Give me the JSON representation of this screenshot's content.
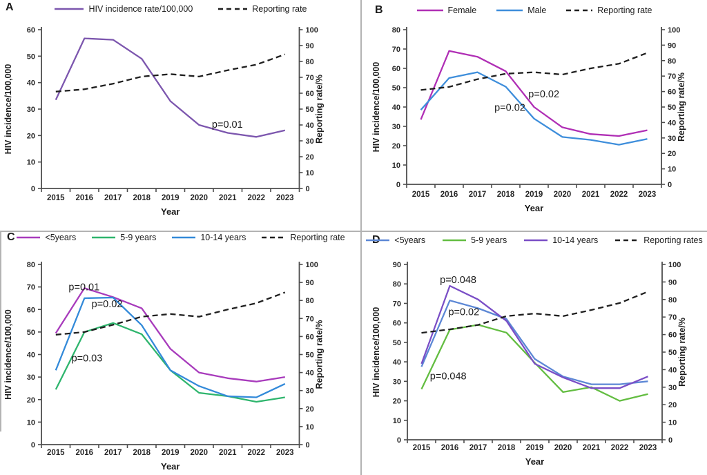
{
  "chart_data": [
    {
      "panel": "A",
      "type": "line",
      "x": [
        2015,
        2016,
        2017,
        2018,
        2019,
        2020,
        2021,
        2022,
        2023
      ],
      "xlabel": "Year",
      "ylabel_left": "HIV incidence/100,000",
      "ylabel_right": "Reporting rate/%",
      "ylim_left": [
        0,
        60
      ],
      "ylim_right": [
        0,
        100
      ],
      "ytick_step": 10,
      "grid": false,
      "legend_position": "top",
      "series": [
        {
          "name": "HIV incidence rate/100,000",
          "axis": "left",
          "color": "#7C56AE",
          "dash": false,
          "values": [
            33.5,
            56.7,
            56.2,
            49,
            33,
            24,
            21,
            19.5,
            22
          ]
        },
        {
          "name": "Reporting rate",
          "axis": "right",
          "color": "#1f1f1f",
          "dash": true,
          "values": [
            61,
            62.5,
            66,
            70.5,
            72,
            70.5,
            74.5,
            78,
            84.5
          ]
        }
      ],
      "annotations": [
        {
          "text": "p=0.01",
          "x": 2020.45,
          "y": 23
        }
      ]
    },
    {
      "panel": "B",
      "type": "line",
      "x": [
        2015,
        2016,
        2017,
        2018,
        2019,
        2020,
        2021,
        2022,
        2023
      ],
      "xlabel": "Year",
      "ylabel_left": "HIV incidence/100,000",
      "ylabel_right": "Reporting rate/%",
      "ylim_left": [
        0,
        80
      ],
      "ylim_right": [
        0,
        100
      ],
      "ytick_step": 10,
      "grid": false,
      "legend_position": "top",
      "series": [
        {
          "name": "Female",
          "axis": "left",
          "color": "#B02FB5",
          "dash": false,
          "values": [
            33.5,
            69,
            66,
            58.5,
            40,
            29.5,
            26,
            25,
            28
          ]
        },
        {
          "name": "Male",
          "axis": "left",
          "color": "#3E8EDB",
          "dash": false,
          "values": [
            38.5,
            55,
            58,
            50.5,
            34,
            24.5,
            23,
            20.5,
            23.5
          ]
        },
        {
          "name": "Reporting rate",
          "axis": "right",
          "color": "#1f1f1f",
          "dash": true,
          "values": [
            61,
            63,
            68,
            71.5,
            72.5,
            71,
            75,
            78,
            85
          ]
        }
      ],
      "annotations": [
        {
          "text": "p=0.02",
          "x": 2018.8,
          "y": 45
        },
        {
          "text": "p=0.02",
          "x": 2017.6,
          "y": 38
        }
      ]
    },
    {
      "panel": "C",
      "type": "line",
      "x": [
        2015,
        2016,
        2017,
        2018,
        2019,
        2020,
        2021,
        2022,
        2023
      ],
      "xlabel": "Year",
      "ylabel_left": "HIV incidence/100,000",
      "ylabel_right": "Reporting rate/%",
      "ylim_left": [
        0,
        80
      ],
      "ylim_right": [
        0,
        100
      ],
      "ytick_step": 10,
      "grid": false,
      "legend_position": "top",
      "series": [
        {
          "name": "<5years",
          "axis": "left",
          "color": "#A83BBC",
          "dash": false,
          "values": [
            49.5,
            69.5,
            65.5,
            60.5,
            42.5,
            32,
            29.5,
            28,
            30
          ]
        },
        {
          "name": "5-9 years",
          "axis": "left",
          "color": "#2EB56D",
          "dash": false,
          "values": [
            24.5,
            50,
            54,
            49,
            33,
            23,
            21.5,
            19,
            21
          ]
        },
        {
          "name": "10-14 years",
          "axis": "left",
          "color": "#338AD9",
          "dash": false,
          "values": [
            33,
            65,
            65.3,
            53,
            33,
            26,
            21.5,
            21,
            27
          ]
        },
        {
          "name": "Reporting rate",
          "axis": "right",
          "color": "#1f1f1f",
          "dash": true,
          "values": [
            61,
            62.5,
            66.5,
            71,
            72.5,
            71,
            75,
            78.5,
            84.5
          ]
        }
      ],
      "annotations": [
        {
          "text": "p=0.01",
          "x": 2015.45,
          "y": 68.5
        },
        {
          "text": "p=0.02",
          "x": 2016.25,
          "y": 61
        },
        {
          "text": "p=0.03",
          "x": 2015.55,
          "y": 37
        }
      ]
    },
    {
      "panel": "D",
      "type": "line",
      "x": [
        2015,
        2016,
        2017,
        2018,
        2019,
        2020,
        2021,
        2022,
        2023
      ],
      "xlabel": "Year",
      "ylabel_left": "HIV incidence/100,000",
      "ylabel_right": "Reporting rate/%",
      "ylim_left": [
        0,
        90
      ],
      "ylim_right": [
        0,
        100
      ],
      "ytick_step": 10,
      "grid": false,
      "legend_position": "top",
      "series": [
        {
          "name": "<5years",
          "axis": "left",
          "color": "#5C87D5",
          "dash": false,
          "values": [
            37.5,
            71.5,
            67.5,
            62,
            41.5,
            32.5,
            28.5,
            28.5,
            30
          ]
        },
        {
          "name": "5-9 years",
          "axis": "left",
          "color": "#63BD41",
          "dash": false,
          "values": [
            26,
            56.5,
            59,
            55,
            39.5,
            24.5,
            27,
            20,
            23.5
          ]
        },
        {
          "name": "10-14 years",
          "axis": "left",
          "color": "#7A4EC6",
          "dash": false,
          "values": [
            39,
            79,
            72,
            61,
            39,
            32,
            26.5,
            26.5,
            32.5
          ]
        },
        {
          "name": "Reporting rates",
          "axis": "right",
          "color": "#1f1f1f",
          "dash": true,
          "values": [
            61,
            63,
            65.5,
            70.5,
            72,
            70.5,
            74,
            78,
            84.5
          ]
        }
      ],
      "annotations": [
        {
          "text": "p=0.048",
          "x": 2015.65,
          "y": 80.5
        },
        {
          "text": "p=0.02",
          "x": 2015.95,
          "y": 64
        },
        {
          "text": "p=0.048",
          "x": 2015.3,
          "y": 31
        }
      ]
    }
  ],
  "colors": {
    "divider": "#b3b3b3",
    "axis": "#4d4d4d",
    "text": "#1a1a1a"
  }
}
